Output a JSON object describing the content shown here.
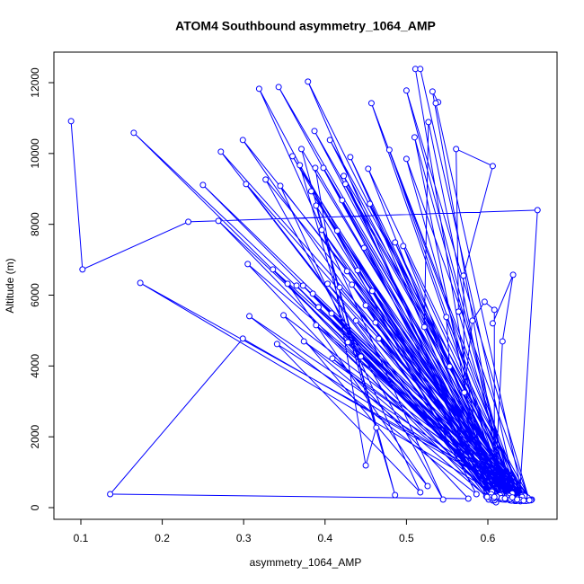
{
  "chart_data": {
    "type": "line",
    "title": "ATOM4 Southbound asymmetry_1064_AMP",
    "x_label": "asymmetry_1064_AMP",
    "y_label": "Altitude (m)",
    "color": "#0000ff",
    "markers": true,
    "grid": false,
    "xlim": [
      0.0669,
      0.685
    ],
    "ylim": [
      -330,
      12863
    ],
    "xticks": [
      0.1,
      0.2,
      0.3,
      0.4,
      0.5,
      0.6
    ],
    "yticks": [
      0,
      2000,
      4000,
      6000,
      8000,
      10000,
      12000
    ],
    "x": [
      0.088,
      0.102,
      0.232,
      0.661,
      0.639,
      0.165,
      0.622,
      0.173,
      0.646,
      0.25,
      0.633,
      0.269,
      0.601,
      0.272,
      0.654,
      0.299,
      0.606,
      0.303,
      0.64,
      0.305,
      0.576,
      0.136,
      0.299,
      0.63,
      0.307,
      0.586,
      0.319,
      0.545,
      0.327,
      0.65,
      0.336,
      0.62,
      0.343,
      0.64,
      0.341,
      0.517,
      0.345,
      0.645,
      0.349,
      0.526,
      0.354,
      0.61,
      0.36,
      0.625,
      0.365,
      0.605,
      0.369,
      0.486,
      0.371,
      0.63,
      0.373,
      0.648,
      0.374,
      0.598,
      0.379,
      0.635,
      0.383,
      0.612,
      0.385,
      0.642,
      0.387,
      0.627,
      0.388,
      0.45,
      0.463,
      0.389,
      0.604,
      0.389,
      0.643,
      0.392,
      0.616,
      0.396,
      0.638,
      0.398,
      0.623,
      0.403,
      0.653,
      0.406,
      0.631,
      0.408,
      0.609,
      0.409,
      0.644,
      0.415,
      0.626,
      0.418,
      0.636,
      0.421,
      0.608,
      0.423,
      0.649,
      0.425,
      0.615,
      0.427,
      0.641,
      0.428,
      0.62,
      0.431,
      0.633,
      0.433,
      0.603,
      0.438,
      0.645,
      0.44,
      0.629,
      0.444,
      0.637,
      0.448,
      0.618,
      0.45,
      0.647,
      0.453,
      0.611,
      0.455,
      0.639,
      0.457,
      0.624,
      0.458,
      0.634,
      0.462,
      0.607,
      0.466,
      0.642,
      0.479,
      0.628,
      0.486,
      0.64,
      0.496,
      0.617,
      0.5,
      0.651,
      0.5,
      0.632,
      0.51,
      0.599,
      0.511,
      0.517,
      0.636,
      0.522,
      0.527,
      0.621,
      0.532,
      0.539,
      0.536,
      0.644,
      0.549,
      0.553,
      0.63,
      0.564,
      0.561,
      0.606,
      0.57,
      0.571,
      0.581,
      0.596,
      0.608,
      0.608,
      0.618,
      0.631,
      0.606
    ],
    "y": [
      10914,
      6726,
      8071,
      8401,
      305,
      10584,
      228,
      6345,
      305,
      9112,
      228,
      8096,
      228,
      10051,
      228,
      10381,
      203,
      9137,
      300,
      6878,
      254,
      381,
      4772,
      400,
      5406,
      381,
      11827,
      228,
      9264,
      200,
      6726,
      230,
      11878,
      180,
      4619,
      431,
      9086,
      250,
      5431,
      609,
      6320,
      150,
      9924,
      350,
      6269,
      450,
      9670,
      355,
      10127,
      280,
      6269,
      220,
      4695,
      320,
      12030,
      190,
      8934,
      260,
      6041,
      340,
      10635,
      210,
      9594,
      1193,
      2259,
      8528,
      380,
      5152,
      270,
      5660,
      240,
      7843,
      200,
      9594,
      310,
      6320,
      210,
      10381,
      260,
      5482,
      300,
      4213,
      190,
      7817,
      330,
      6218,
      240,
      8680,
      210,
      9365,
      280,
      9137,
      350,
      6675,
      220,
      4670,
      260,
      9898,
      190,
      6294,
      290,
      5279,
      330,
      6701,
      200,
      4264,
      270,
      7335,
      230,
      5711,
      190,
      9569,
      310,
      8579,
      240,
      11421,
      280,
      6117,
      210,
      5228,
      260,
      4772,
      300,
      10102,
      240,
      7487,
      220,
      7386,
      270,
      9848,
      210,
      11777,
      250,
      10457,
      300,
      12386,
      12386,
      230,
      5101,
      10888,
      260,
      11751,
      11447,
      11421,
      200,
      5381,
      3985,
      290,
      5533,
      10127,
      9645,
      6548,
      3249,
      5279,
      5812,
      5584,
      300,
      4695,
      6574,
      5203
    ]
  }
}
